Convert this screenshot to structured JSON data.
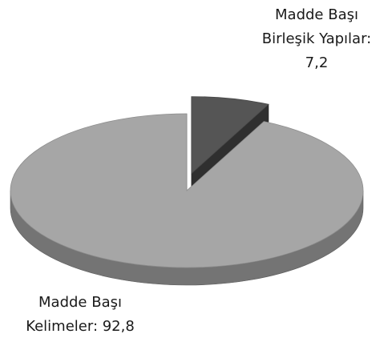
{
  "chart_data": {
    "type": "pie",
    "style": "3d-exploded",
    "slices": [
      {
        "label_lines": [
          "Madde Başı",
          "Birleşik Yapılar:",
          "7,2"
        ],
        "value": 7.2,
        "color": "#555555",
        "exploded": true
      },
      {
        "label_lines": [
          "Madde Başı",
          "Kelimeler: 92,8"
        ],
        "value": 92.8,
        "color": "#a6a6a6",
        "exploded": false
      }
    ],
    "legend": "none"
  }
}
